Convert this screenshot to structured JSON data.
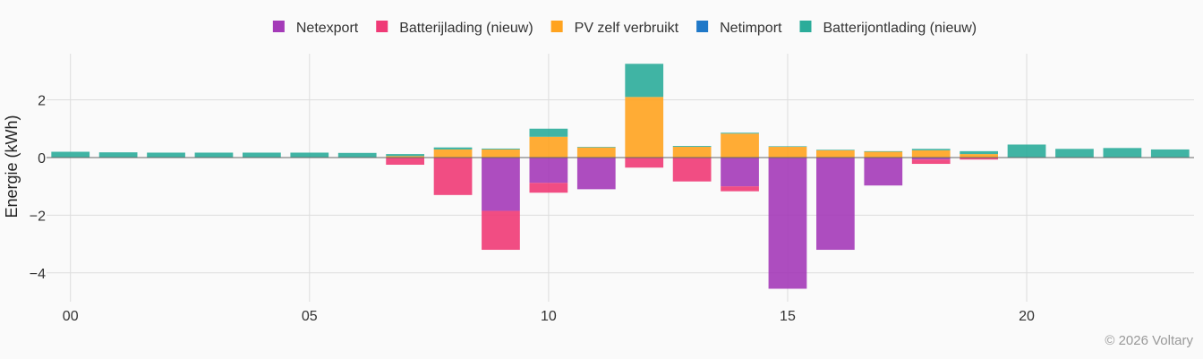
{
  "chart_data": {
    "type": "bar",
    "stacked": true,
    "ylabel": "Energie (kWh)",
    "ylim": [
      -5,
      3.6
    ],
    "yticks": [
      2,
      0,
      -2,
      -4
    ],
    "xlim": [
      -0.5,
      23.5
    ],
    "xticks": [
      {
        "x": 0,
        "label": "00"
      },
      {
        "x": 5,
        "label": "05"
      },
      {
        "x": 10,
        "label": "10"
      },
      {
        "x": 15,
        "label": "15"
      },
      {
        "x": 20,
        "label": "20"
      }
    ],
    "grid": true,
    "legend_position": "top",
    "x": [
      0,
      1,
      2,
      3,
      4,
      5,
      6,
      7,
      8,
      9,
      10,
      11,
      12,
      13,
      14,
      15,
      16,
      17,
      18,
      19,
      20,
      21,
      22,
      23
    ],
    "series": [
      {
        "name": "Netexport",
        "color": "#a43ab8",
        "key": "netexport",
        "values": [
          0,
          0,
          0,
          0,
          0,
          0,
          0,
          0,
          0,
          -1.85,
          -0.88,
          -1.1,
          0,
          0,
          -1.0,
          -4.55,
          -3.2,
          -0.97,
          -0.07,
          0,
          0,
          0,
          0,
          0
        ]
      },
      {
        "name": "Batterijlading (nieuw)",
        "color": "#ef3a76",
        "key": "batterijlading",
        "values": [
          0,
          0,
          0,
          0,
          0,
          0,
          0,
          -0.25,
          -1.3,
          -1.35,
          -0.34,
          0,
          -0.35,
          -0.83,
          -0.17,
          0,
          0,
          0,
          -0.15,
          -0.07,
          0,
          0,
          0,
          0
        ]
      },
      {
        "name": "PV zelf verbruikt",
        "color": "#ffa31f",
        "key": "pv_zelf",
        "values": [
          0,
          0,
          0,
          0,
          0,
          0,
          0,
          0.05,
          0.28,
          0.28,
          0.72,
          0.35,
          2.1,
          0.37,
          0.83,
          0.37,
          0.25,
          0.2,
          0.25,
          0.12,
          0,
          0,
          0,
          0
        ]
      },
      {
        "name": "Netimport",
        "color": "#1f78c8",
        "key": "netimport",
        "values": [
          0,
          0,
          0,
          0,
          0,
          0,
          0,
          0,
          0,
          0,
          0,
          0,
          0,
          0,
          0,
          0,
          0,
          0,
          0,
          0,
          0,
          0,
          0,
          0
        ]
      },
      {
        "name": "Batterijontlading (nieuw)",
        "color": "#2bac9a",
        "key": "batterijontlading",
        "values": [
          0.2,
          0.18,
          0.17,
          0.17,
          0.17,
          0.17,
          0.16,
          0.07,
          0.07,
          0.03,
          0.28,
          0.02,
          1.15,
          0.03,
          0.03,
          0.02,
          0.02,
          0.02,
          0.05,
          0.1,
          0.45,
          0.3,
          0.33,
          0.28
        ]
      }
    ]
  },
  "copyright": "© 2026 Voltary"
}
